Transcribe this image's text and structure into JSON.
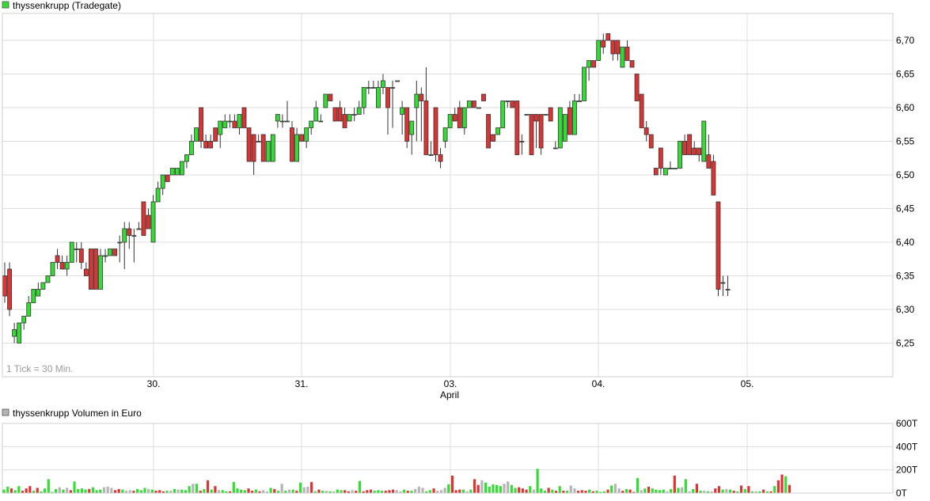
{
  "price_panel": {
    "legend_label": "thyssenkrupp (Tradegate)",
    "tick_note": "1 Tick = 30 Min."
  },
  "volume_panel": {
    "legend_label": "thyssenkrupp Volumen in Euro"
  },
  "colors": {
    "up": "#33dd33",
    "down": "#dd3333",
    "neutral": "#b4b4b4",
    "grid": "#dddddd",
    "frame": "#cfcfcf",
    "legend_price": "#33dd33",
    "legend_volume": "#b4b4b4"
  },
  "chart_data": [
    {
      "type": "candlestick",
      "title": "thyssenkrupp (Tradegate)",
      "interval_note": "1 Tick = 30 Min.",
      "ylim": [
        6.2,
        6.74
      ],
      "y_ticks": [
        "6,25",
        "6,30",
        "6,35",
        "6,40",
        "6,45",
        "6,50",
        "6,55",
        "6,60",
        "6,65",
        "6,70"
      ],
      "y_tick_values": [
        6.25,
        6.3,
        6.35,
        6.4,
        6.45,
        6.5,
        6.55,
        6.6,
        6.65,
        6.7
      ],
      "x_tick_labels": [
        "30.",
        "31.",
        "03.",
        "04.",
        "05."
      ],
      "x_sublabel": "April",
      "candles": [
        [
          6.35,
          6.37,
          6.31,
          6.32
        ],
        [
          6.36,
          6.37,
          6.29,
          6.3
        ],
        [
          6.26,
          6.28,
          6.25,
          6.27
        ],
        [
          6.25,
          6.28,
          6.25,
          6.28
        ],
        [
          6.28,
          6.29,
          6.27,
          6.29
        ],
        [
          6.29,
          6.32,
          6.29,
          6.31
        ],
        [
          6.31,
          6.33,
          6.31,
          6.33
        ],
        [
          6.32,
          6.34,
          6.32,
          6.33
        ],
        [
          6.33,
          6.34,
          6.33,
          6.34
        ],
        [
          6.34,
          6.35,
          6.34,
          6.35
        ],
        [
          6.35,
          6.37,
          6.35,
          6.37
        ],
        [
          6.38,
          6.39,
          6.36,
          6.37
        ],
        [
          6.37,
          6.38,
          6.36,
          6.36
        ],
        [
          6.36,
          6.38,
          6.35,
          6.37
        ],
        [
          6.37,
          6.4,
          6.37,
          6.4
        ],
        [
          6.39,
          6.4,
          6.37,
          6.39
        ],
        [
          6.39,
          6.4,
          6.36,
          6.37
        ],
        [
          6.36,
          6.37,
          6.35,
          6.35
        ],
        [
          6.39,
          6.39,
          6.33,
          6.33
        ],
        [
          6.39,
          6.39,
          6.33,
          6.33
        ],
        [
          6.33,
          6.39,
          6.33,
          6.38
        ],
        [
          6.38,
          6.39,
          6.37,
          6.38
        ],
        [
          6.38,
          6.39,
          6.38,
          6.39
        ],
        [
          6.39,
          6.39,
          6.38,
          6.38
        ],
        [
          6.4,
          6.41,
          6.37,
          6.4
        ],
        [
          6.4,
          6.43,
          6.36,
          6.42
        ],
        [
          6.42,
          6.43,
          6.39,
          6.41
        ],
        [
          6.41,
          6.42,
          6.37,
          6.41
        ],
        [
          6.42,
          6.43,
          6.42,
          6.42
        ],
        [
          6.46,
          6.46,
          6.41,
          6.41
        ],
        [
          6.44,
          6.45,
          6.42,
          6.42
        ],
        [
          6.4,
          6.47,
          6.4,
          6.46
        ],
        [
          6.46,
          6.49,
          6.46,
          6.48
        ],
        [
          6.48,
          6.5,
          6.47,
          6.5
        ],
        [
          6.5,
          6.5,
          6.49,
          6.49
        ],
        [
          6.5,
          6.51,
          6.5,
          6.51
        ],
        [
          6.5,
          6.51,
          6.5,
          6.51
        ],
        [
          6.5,
          6.52,
          6.5,
          6.52
        ],
        [
          6.52,
          6.53,
          6.51,
          6.53
        ],
        [
          6.53,
          6.56,
          6.53,
          6.55
        ],
        [
          6.55,
          6.57,
          6.55,
          6.57
        ],
        [
          6.6,
          6.6,
          6.54,
          6.55
        ],
        [
          6.55,
          6.56,
          6.54,
          6.54
        ],
        [
          6.55,
          6.56,
          6.54,
          6.54
        ],
        [
          6.57,
          6.57,
          6.55,
          6.55
        ],
        [
          6.56,
          6.58,
          6.54,
          6.58
        ],
        [
          6.57,
          6.59,
          6.57,
          6.58
        ],
        [
          6.58,
          6.59,
          6.57,
          6.58
        ],
        [
          6.58,
          6.59,
          6.57,
          6.57
        ],
        [
          6.57,
          6.59,
          6.56,
          6.59
        ],
        [
          6.6,
          6.6,
          6.57,
          6.57
        ],
        [
          6.57,
          6.57,
          6.52,
          6.52
        ],
        [
          6.56,
          6.56,
          6.5,
          6.52
        ],
        [
          6.55,
          6.56,
          6.55,
          6.55
        ],
        [
          6.56,
          6.56,
          6.52,
          6.52
        ],
        [
          6.52,
          6.55,
          6.52,
          6.55
        ],
        [
          6.52,
          6.56,
          6.52,
          6.56
        ],
        [
          6.58,
          6.59,
          6.57,
          6.59
        ],
        [
          6.58,
          6.59,
          6.57,
          6.58
        ],
        [
          6.58,
          6.61,
          6.58,
          6.58
        ],
        [
          6.57,
          6.58,
          6.52,
          6.52
        ],
        [
          6.52,
          6.57,
          6.52,
          6.56
        ],
        [
          6.56,
          6.56,
          6.55,
          6.55
        ],
        [
          6.55,
          6.57,
          6.54,
          6.57
        ],
        [
          6.57,
          6.58,
          6.56,
          6.58
        ],
        [
          6.58,
          6.61,
          6.58,
          6.6
        ],
        [
          6.58,
          6.59,
          6.58,
          6.58
        ],
        [
          6.6,
          6.62,
          6.6,
          6.62
        ],
        [
          6.62,
          6.62,
          6.61,
          6.61
        ],
        [
          6.6,
          6.6,
          6.58,
          6.58
        ],
        [
          6.6,
          6.61,
          6.58,
          6.58
        ],
        [
          6.59,
          6.6,
          6.57,
          6.57
        ],
        [
          6.58,
          6.59,
          6.58,
          6.59
        ],
        [
          6.59,
          6.6,
          6.58,
          6.59
        ],
        [
          6.59,
          6.61,
          6.59,
          6.6
        ],
        [
          6.6,
          6.63,
          6.59,
          6.63
        ],
        [
          6.63,
          6.64,
          6.62,
          6.63
        ],
        [
          6.63,
          6.64,
          6.63,
          6.63
        ],
        [
          6.6,
          6.64,
          6.6,
          6.63
        ],
        [
          6.63,
          6.65,
          6.62,
          6.64
        ],
        [
          6.63,
          6.63,
          6.56,
          6.6
        ],
        [
          6.63,
          6.64,
          6.57,
          6.63
        ],
        [
          6.64,
          6.64,
          6.64,
          6.64
        ],
        [
          6.59,
          6.61,
          6.56,
          6.6
        ],
        [
          6.6,
          6.6,
          6.54,
          6.55
        ],
        [
          6.56,
          6.58,
          6.53,
          6.58
        ],
        [
          6.6,
          6.64,
          6.55,
          6.62
        ],
        [
          6.62,
          6.63,
          6.55,
          6.61
        ],
        [
          6.61,
          6.66,
          6.53,
          6.53
        ],
        [
          6.53,
          6.55,
          6.53,
          6.53
        ],
        [
          6.6,
          6.6,
          6.52,
          6.53
        ],
        [
          6.53,
          6.54,
          6.51,
          6.52
        ],
        [
          6.55,
          6.57,
          6.54,
          6.57
        ],
        [
          6.57,
          6.59,
          6.57,
          6.59
        ],
        [
          6.59,
          6.6,
          6.58,
          6.58
        ],
        [
          6.6,
          6.61,
          6.57,
          6.57
        ],
        [
          6.57,
          6.6,
          6.56,
          6.6
        ],
        [
          6.6,
          6.61,
          6.6,
          6.61
        ],
        [
          6.61,
          6.61,
          6.6,
          6.6
        ],
        [
          6.6,
          6.6,
          6.6,
          6.6
        ],
        [
          6.62,
          6.62,
          6.61,
          6.61
        ],
        [
          6.59,
          6.59,
          6.54,
          6.54
        ],
        [
          6.56,
          6.56,
          6.55,
          6.55
        ],
        [
          6.56,
          6.57,
          6.56,
          6.57
        ],
        [
          6.57,
          6.61,
          6.57,
          6.61
        ],
        [
          6.61,
          6.61,
          6.6,
          6.61
        ],
        [
          6.61,
          6.61,
          6.6,
          6.6
        ],
        [
          6.61,
          6.61,
          6.53,
          6.53
        ],
        [
          6.55,
          6.56,
          6.53,
          6.55
        ],
        [
          6.59,
          6.59,
          6.59,
          6.59
        ],
        [
          6.59,
          6.59,
          6.53,
          6.53
        ],
        [
          6.59,
          6.59,
          6.54,
          6.58
        ],
        [
          6.59,
          6.59,
          6.53,
          6.54
        ],
        [
          6.59,
          6.59,
          6.59,
          6.59
        ],
        [
          6.6,
          6.6,
          6.58,
          6.58
        ],
        [
          6.54,
          6.55,
          6.54,
          6.54
        ],
        [
          6.54,
          6.6,
          6.54,
          6.6
        ],
        [
          6.55,
          6.59,
          6.55,
          6.59
        ],
        [
          6.6,
          6.61,
          6.56,
          6.56
        ],
        [
          6.56,
          6.62,
          6.56,
          6.61
        ],
        [
          6.61,
          6.62,
          6.61,
          6.61
        ],
        [
          6.61,
          6.66,
          6.61,
          6.66
        ],
        [
          6.66,
          6.67,
          6.64,
          6.67
        ],
        [
          6.67,
          6.67,
          6.66,
          6.66
        ],
        [
          6.67,
          6.7,
          6.67,
          6.7
        ],
        [
          6.7,
          6.71,
          6.68,
          6.69
        ],
        [
          6.71,
          6.71,
          6.7,
          6.7
        ],
        [
          6.7,
          6.7,
          6.67,
          6.68
        ],
        [
          6.7,
          6.7,
          6.67,
          6.68
        ],
        [
          6.66,
          6.69,
          6.66,
          6.69
        ],
        [
          6.69,
          6.7,
          6.67,
          6.67
        ],
        [
          6.67,
          6.67,
          6.66,
          6.66
        ],
        [
          6.65,
          6.65,
          6.61,
          6.61
        ],
        [
          6.62,
          6.62,
          6.57,
          6.57
        ],
        [
          6.57,
          6.58,
          6.55,
          6.56
        ],
        [
          6.56,
          6.56,
          6.54,
          6.54
        ],
        [
          6.51,
          6.51,
          6.5,
          6.5
        ],
        [
          6.54,
          6.54,
          6.5,
          6.51
        ],
        [
          6.5,
          6.51,
          6.5,
          6.51
        ],
        [
          6.51,
          6.52,
          6.51,
          6.51
        ],
        [
          6.51,
          6.51,
          6.51,
          6.51
        ],
        [
          6.51,
          6.55,
          6.51,
          6.55
        ],
        [
          6.55,
          6.56,
          6.53,
          6.53
        ],
        [
          6.56,
          6.56,
          6.53,
          6.53
        ],
        [
          6.54,
          6.55,
          6.53,
          6.53
        ],
        [
          6.54,
          6.54,
          6.52,
          6.53
        ],
        [
          6.52,
          6.58,
          6.52,
          6.58
        ],
        [
          6.53,
          6.56,
          6.51,
          6.51
        ],
        [
          6.52,
          6.53,
          6.47,
          6.47
        ],
        [
          6.46,
          6.46,
          6.32,
          6.33
        ],
        [
          6.34,
          6.35,
          6.32,
          6.34
        ],
        [
          6.33,
          6.35,
          6.32,
          6.33
        ]
      ]
    },
    {
      "type": "bar",
      "title": "thyssenkrupp Volumen in Euro",
      "ylim": [
        0,
        600000
      ],
      "y_ticks": [
        "0T",
        "200T",
        "400T",
        "600T"
      ],
      "y_tick_values": [
        0,
        200000,
        400000,
        600000
      ],
      "x_tick_labels": [
        "30.",
        "31.",
        "03.",
        "04.",
        "05."
      ],
      "values": [
        30,
        55,
        40,
        25,
        60,
        20,
        40,
        60,
        20,
        45,
        15,
        40,
        120,
        10,
        35,
        50,
        30,
        45,
        25,
        100,
        35,
        40,
        30,
        35,
        50,
        25,
        30,
        50,
        55,
        45,
        25,
        35,
        30,
        20,
        25,
        20,
        35,
        25,
        45,
        35,
        30,
        20,
        25,
        15,
        20,
        20,
        35,
        30,
        30,
        25,
        60,
        80,
        80,
        20,
        35,
        110,
        30,
        60,
        25,
        25,
        15,
        15,
        95,
        40,
        30,
        25,
        40,
        20,
        30,
        15,
        25,
        15,
        45,
        35,
        20,
        80,
        20,
        30,
        30,
        20,
        90,
        50,
        55,
        95,
        15,
        30,
        20,
        20,
        15,
        15,
        30,
        25,
        25,
        15,
        25,
        20,
        105,
        15,
        25,
        30,
        20,
        25,
        20,
        20,
        25,
        30,
        25,
        15,
        30,
        20,
        20,
        35,
        55,
        45,
        15,
        25,
        40,
        20,
        25,
        45,
        75,
        150,
        25,
        30,
        30,
        15,
        30,
        120,
        70,
        110,
        90,
        55,
        75,
        70,
        60,
        80,
        100,
        70,
        45,
        50,
        40,
        30,
        60,
        30,
        210,
        40,
        20,
        45,
        30,
        20,
        60,
        20,
        20,
        65,
        40,
        20,
        25,
        20,
        30,
        15,
        20,
        10,
        15,
        30,
        65,
        80,
        40,
        20,
        35,
        30,
        10,
        130,
        25,
        40,
        55,
        40,
        30,
        25,
        30,
        15,
        35,
        150,
        45,
        50,
        120,
        15,
        35,
        80,
        20,
        20,
        15,
        15,
        40,
        60,
        30,
        35,
        30,
        20,
        15,
        65,
        35,
        60,
        15,
        15,
        15,
        30,
        15,
        15,
        60,
        110,
        160,
        145,
        70
      ]
    }
  ]
}
